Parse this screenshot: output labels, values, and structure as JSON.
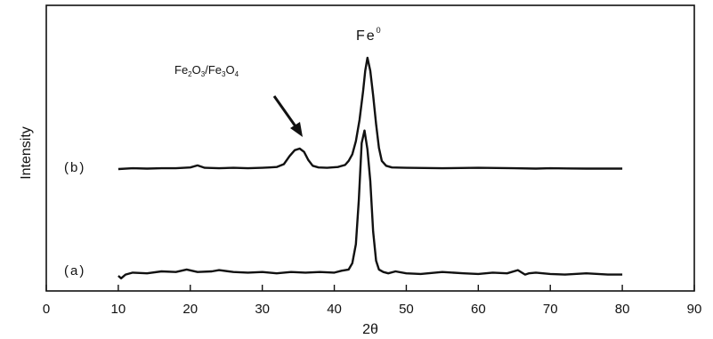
{
  "chart_data": {
    "type": "line",
    "title": "",
    "xlabel": "2θ",
    "ylabel": "Intensity",
    "xlim": [
      0,
      90
    ],
    "xticks": [
      0,
      10,
      20,
      30,
      40,
      50,
      60,
      70,
      80,
      90
    ],
    "yticks_shown": false,
    "grid": false,
    "series": [
      {
        "name": "(a)",
        "x": [
          10,
          10.4,
          11,
          12,
          14,
          16,
          18,
          19.5,
          21,
          23,
          24,
          26,
          28,
          30,
          32,
          34,
          36,
          38,
          40,
          41,
          42,
          42.5,
          43,
          43.4,
          43.8,
          44.2,
          44.6,
          45,
          45.4,
          45.8,
          46.2,
          46.8,
          47.5,
          48.5,
          50,
          52,
          55,
          58,
          60,
          62,
          64,
          65.5,
          66.5,
          67,
          68,
          70,
          72,
          75,
          78,
          80
        ],
        "y": [
          0.0,
          -0.2,
          0.1,
          0.25,
          0.2,
          0.35,
          0.3,
          0.5,
          0.3,
          0.35,
          0.45,
          0.3,
          0.25,
          0.3,
          0.2,
          0.3,
          0.25,
          0.3,
          0.25,
          0.4,
          0.5,
          1.0,
          2.5,
          6.0,
          10.5,
          11.5,
          10.0,
          7.5,
          3.5,
          1.2,
          0.5,
          0.3,
          0.2,
          0.35,
          0.2,
          0.15,
          0.3,
          0.2,
          0.15,
          0.25,
          0.2,
          0.45,
          0.1,
          0.2,
          0.25,
          0.15,
          0.1,
          0.2,
          0.1,
          0.1
        ]
      },
      {
        "name": "(b)",
        "x": [
          10,
          12,
          14,
          16,
          18,
          20,
          21,
          22,
          24,
          26,
          28,
          30,
          31,
          32,
          33,
          33.8,
          34.5,
          35.2,
          35.8,
          36.4,
          37,
          37.8,
          39,
          40.5,
          41.5,
          42,
          42.5,
          43,
          43.5,
          44,
          44.3,
          44.6,
          45,
          45.4,
          45.8,
          46.2,
          46.6,
          47.2,
          48,
          50,
          55,
          60,
          65,
          68,
          70,
          75,
          80
        ],
        "y": [
          0.0,
          0.1,
          0.05,
          0.1,
          0.1,
          0.2,
          0.45,
          0.15,
          0.1,
          0.15,
          0.1,
          0.15,
          0.2,
          0.25,
          0.6,
          1.6,
          2.3,
          2.5,
          2.1,
          1.1,
          0.4,
          0.2,
          0.15,
          0.25,
          0.5,
          1.0,
          1.8,
          3.4,
          6.0,
          9.5,
          12.0,
          13.6,
          12.0,
          9.0,
          5.5,
          2.6,
          1.0,
          0.4,
          0.2,
          0.15,
          0.1,
          0.15,
          0.1,
          0.05,
          0.1,
          0.05,
          0.05
        ]
      }
    ],
    "series_labels": [
      "(a)",
      "(b)"
    ],
    "annotations": [
      {
        "main": "Fe",
        "sup": "0"
      },
      {
        "parts": [
          "Fe",
          "2",
          "O",
          "3",
          "/Fe",
          "3",
          "O",
          "4"
        ]
      }
    ]
  }
}
